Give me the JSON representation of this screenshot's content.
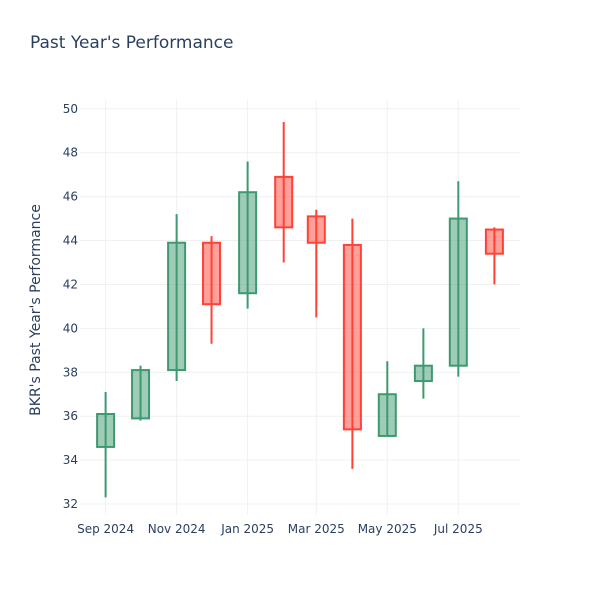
{
  "chart_data": {
    "type": "candlestick",
    "title": "Past Year's Performance",
    "ylabel": "BKR's Past Year's Performance",
    "xlabel": "",
    "ylim": [
      31.5,
      50.4
    ],
    "yticks": [
      32,
      34,
      36,
      38,
      40,
      42,
      44,
      46,
      48,
      50
    ],
    "xticks": [
      {
        "label": "Sep 2024",
        "date": "2024-09-01"
      },
      {
        "label": "Nov 2024",
        "date": "2024-11-01"
      },
      {
        "label": "Jan 2025",
        "date": "2025-01-01"
      },
      {
        "label": "Mar 2025",
        "date": "2025-03-01"
      },
      {
        "label": "May 2025",
        "date": "2025-05-01"
      },
      {
        "label": "Jul 2025",
        "date": "2025-07-01"
      }
    ],
    "xrange": [
      "2024-08-10",
      "2025-08-23"
    ],
    "increasing_color": "#3d9970",
    "decreasing_color": "#ff4136",
    "candles": [
      {
        "date": "2024-09-01",
        "open": 34.6,
        "high": 37.1,
        "low": 32.3,
        "close": 36.1
      },
      {
        "date": "2024-10-01",
        "open": 35.9,
        "high": 38.3,
        "low": 35.8,
        "close": 38.1
      },
      {
        "date": "2024-11-01",
        "open": 38.1,
        "high": 45.2,
        "low": 37.6,
        "close": 43.9
      },
      {
        "date": "2024-12-01",
        "open": 43.9,
        "high": 44.2,
        "low": 39.3,
        "close": 41.1
      },
      {
        "date": "2025-01-01",
        "open": 41.6,
        "high": 47.6,
        "low": 40.9,
        "close": 46.2
      },
      {
        "date": "2025-02-01",
        "open": 46.9,
        "high": 49.4,
        "low": 43.0,
        "close": 44.6
      },
      {
        "date": "2025-03-01",
        "open": 45.1,
        "high": 45.4,
        "low": 40.5,
        "close": 43.9
      },
      {
        "date": "2025-04-01",
        "open": 43.8,
        "high": 45.0,
        "low": 33.6,
        "close": 35.4
      },
      {
        "date": "2025-05-01",
        "open": 35.1,
        "high": 38.5,
        "low": 35.1,
        "close": 37.0
      },
      {
        "date": "2025-06-01",
        "open": 37.6,
        "high": 40.0,
        "low": 36.8,
        "close": 38.3
      },
      {
        "date": "2025-07-01",
        "open": 38.3,
        "high": 46.7,
        "low": 37.8,
        "close": 45.0
      },
      {
        "date": "2025-08-01",
        "open": 44.5,
        "high": 44.6,
        "low": 42.0,
        "close": 43.4
      }
    ]
  }
}
